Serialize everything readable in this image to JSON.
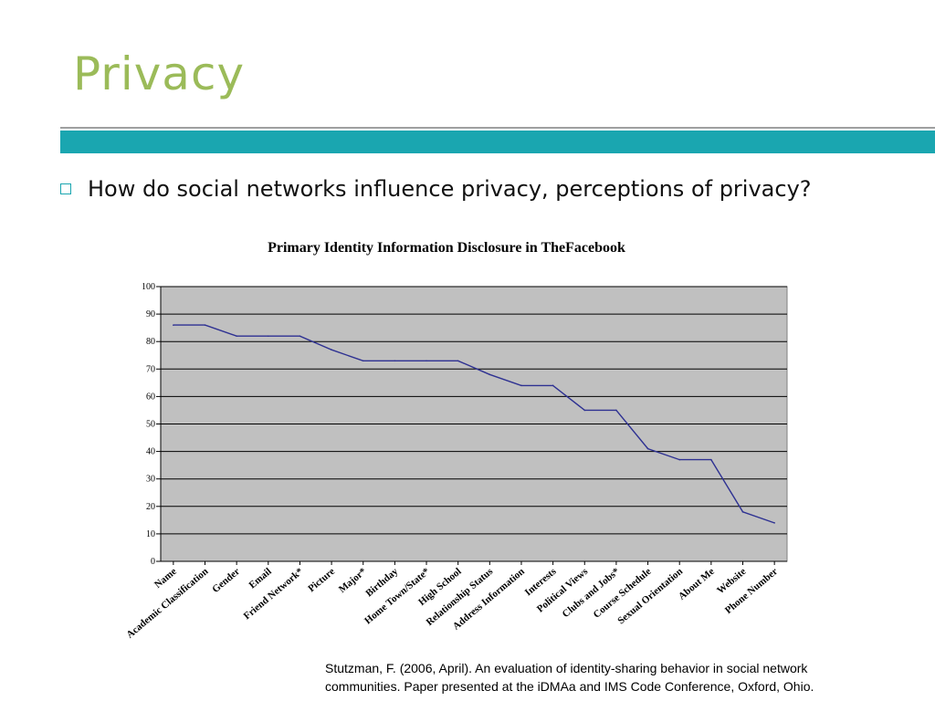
{
  "slide": {
    "title": "Privacy",
    "bullet": "How do social networks influence privacy, perceptions of privacy?",
    "citation_line1": "Stutzman, F. (2006, April). An evaluation of identity-sharing behavior in social network",
    "citation_line2": "communities. Paper presented at the iDMAa and IMS Code Conference, Oxford, Ohio."
  },
  "colors": {
    "title": "#9bbb59",
    "accent_bar": "#1aa6b0",
    "plot_bg": "#c0c0c0",
    "line": "#2e3192"
  },
  "chart_data": {
    "type": "line",
    "title": "Primary Identity Information Disclosure in TheFacebook",
    "xlabel": "",
    "ylabel": "",
    "ylim": [
      0,
      100
    ],
    "yticks": [
      0,
      10,
      20,
      30,
      40,
      50,
      60,
      70,
      80,
      90,
      100
    ],
    "grid": true,
    "legend": "none",
    "categories": [
      "Name",
      "Academic Classification",
      "Gender",
      "Email",
      "Friend Network*",
      "Picture",
      "Major*",
      "Birthday",
      "Home Town/State*",
      "High School",
      "Relationship Status",
      "Address Information",
      "Interests",
      "Political Views",
      "Clubs and Jobs*",
      "Course Schedule",
      "Sexual Orientation",
      "About Me",
      "Website",
      "Phone Number"
    ],
    "series": [
      {
        "values": [
          86,
          86,
          82,
          82,
          82,
          77,
          73,
          73,
          73,
          73,
          68,
          64,
          64,
          55,
          55,
          41,
          37,
          37,
          18,
          14
        ]
      }
    ]
  }
}
